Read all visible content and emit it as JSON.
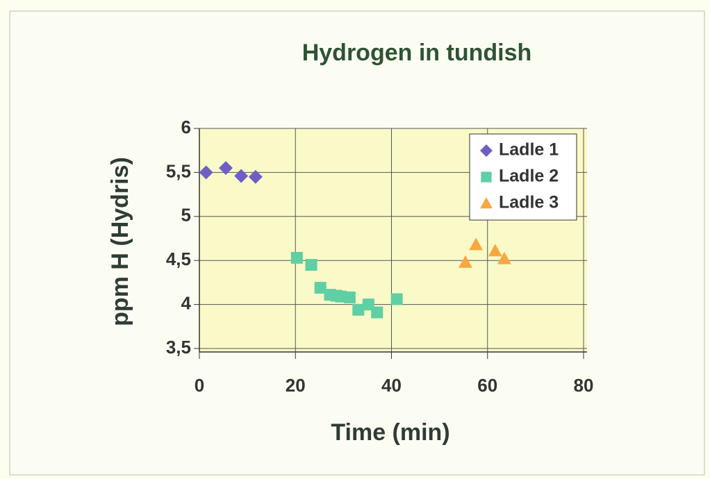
{
  "chart_data": {
    "type": "scatter",
    "title": "Hydrogen in tundish",
    "x_label": "Time (min)",
    "y_label": "ppm H (Hydris)",
    "xlim": [
      0,
      80
    ],
    "xticks": [
      0,
      20,
      40,
      60,
      80
    ],
    "ylim": [
      3.5,
      6
    ],
    "yticks": [
      {
        "value": 3.5,
        "label": "3,5"
      },
      4,
      {
        "value": 4.5,
        "label": "4,5"
      },
      5,
      {
        "value": 5.5,
        "label": "5,5"
      },
      6
    ],
    "grid": true,
    "legend": "upper right",
    "series": [
      {
        "name": "Ladle 1",
        "color": "#6f5fc4",
        "marker": "diamond",
        "x": [
          1.4,
          5.5,
          8.7,
          11.7
        ],
        "values": [
          5.5,
          5.55,
          5.46,
          5.45
        ]
      },
      {
        "name": "Ladle 2",
        "color": "#5fcfa4",
        "marker": "square",
        "x": [
          20.3,
          23.3,
          25.2,
          27.2,
          28.5,
          29.5,
          31.3,
          33.1,
          35.2,
          37.0,
          41.1
        ],
        "values": [
          4.53,
          4.45,
          4.19,
          4.11,
          4.1,
          4.09,
          4.08,
          3.94,
          4.0,
          3.91,
          4.06
        ]
      },
      {
        "name": "Ladle 3",
        "color": "#f9a741",
        "marker": "triangle",
        "x": [
          55.4,
          57.6,
          61.6,
          63.5
        ],
        "values": [
          4.48,
          4.68,
          4.61,
          4.52
        ]
      }
    ]
  }
}
